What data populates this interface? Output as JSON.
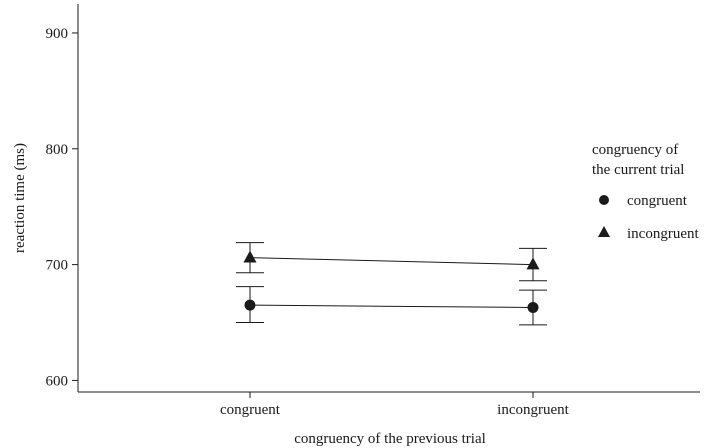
{
  "chart_data": {
    "type": "line",
    "categories": [
      "congruent",
      "incongruent"
    ],
    "xlabel": "congruency of the previous trial",
    "ylabel": "reaction time (ms)",
    "ylim": [
      590,
      925
    ],
    "yticks": [
      600,
      700,
      800,
      900
    ],
    "legend": {
      "title_lines": [
        "congruency of",
        "the current trial"
      ],
      "placement": "right"
    },
    "series": [
      {
        "name": "congruent",
        "marker": "circle",
        "values": [
          665,
          663
        ],
        "error_low": [
          650,
          648
        ],
        "error_high": [
          681,
          678
        ]
      },
      {
        "name": "incongruent",
        "marker": "triangle",
        "values": [
          706,
          700
        ],
        "error_low": [
          693,
          686
        ],
        "error_high": [
          719,
          714
        ]
      }
    ],
    "colors": {
      "ink": "#1a1a1a"
    }
  }
}
